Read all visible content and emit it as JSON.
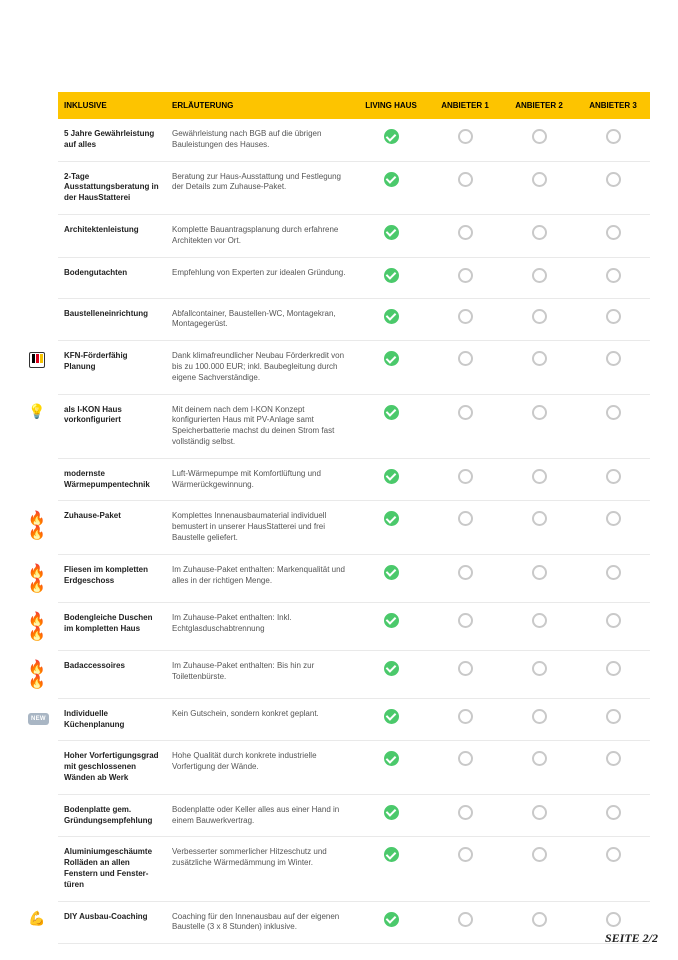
{
  "header": {
    "inklusive": "INKLUSIVE",
    "erlaeuterung": "ERLÄUTERUNG",
    "living": "LIVING HAUS",
    "a1": "ANBIETER 1",
    "a2": "ANBIETER 2",
    "a3": "ANBIETER 3"
  },
  "colors": {
    "header_bg": "#fdc400",
    "check_bg": "#4bc96b",
    "ring_border": "#c9c9c9",
    "row_border": "#e9e9e9"
  },
  "rows": [
    {
      "icon": "",
      "title": "5 Jahre Gewährleistung auf alles",
      "desc": "Gewährleistung nach BGB auf die übrigen Bauleistungen des Hauses."
    },
    {
      "icon": "",
      "title": "2-Tage Ausstattungsberatung in der HausStatterei",
      "desc": "Beratung zur Haus-Ausstattung und Festlegung der Details zum Zuhause-Paket."
    },
    {
      "icon": "",
      "title": "Architektenleistung",
      "desc": "Komplette Bauantragsplanung durch erfahrene Architekten vor Ort."
    },
    {
      "icon": "",
      "title": "Bodengutachten",
      "desc": "Empfehlung von Experten zur idealen Gründung."
    },
    {
      "icon": "",
      "title": "Baustelleneinrichtung",
      "desc": "Abfallcontainer, Baustellen-WC, Montagekran, Montagegerüst."
    },
    {
      "icon": "kfn",
      "title": "KFN-Förderfähig Planung",
      "desc": "Dank klimafreundlicher Neubau Förderkredit von bis zu 100.000 EUR; inkl. Baubegleitung durch eigene Sachverständige."
    },
    {
      "icon": "💡",
      "title": "als I-KON Haus vorkonfiguriert",
      "desc": "Mit deinem nach dem I-KON Konzept konfigurierten Haus mit PV-Anlage samt Speicherbatterie machst du deinen Strom fast vollständig selbst."
    },
    {
      "icon": "",
      "title": "modernste Wärmepumpentechnik",
      "desc": "Luft-Wärmepumpe mit Komfortlüftung und Wärmerückgewinnung."
    },
    {
      "icon": "🔥🔥",
      "title": "Zuhause-Paket",
      "desc": "Komplettes Innenausbaumaterial individuell bemustert in unserer HausStatterei und frei Baustelle geliefert."
    },
    {
      "icon": "🔥🔥",
      "title": "Fliesen im kompletten Erdgeschoss",
      "desc": "Im Zuhause-Paket enthalten: Markenqualität und alles in der richtigen Menge."
    },
    {
      "icon": "🔥🔥",
      "title": "Bodengleiche Duschen im kompletten Haus",
      "desc": "Im Zuhause-Paket enthalten: Inkl. Echtglasduschabtrennung"
    },
    {
      "icon": "🔥🔥",
      "title": "Badaccessoires",
      "desc": "Im Zuhause-Paket enthalten: Bis hin zur Toilettenbürste."
    },
    {
      "icon": "new",
      "title": "Individuelle Küchenplanung",
      "desc": "Kein Gutschein, sondern konkret geplant."
    },
    {
      "icon": "",
      "title": "Hoher Vorfertigungsgrad mit geschlossenen Wänden ab Werk",
      "desc": "Hohe Qualität durch konkrete industrielle Vorfertigung der Wände."
    },
    {
      "icon": "",
      "title": "Bodenplatte gem. Gründungsempfehlung",
      "desc": "Bodenplatte oder Keller alles aus einer Hand in einem Bauwerkvertrag."
    },
    {
      "icon": "",
      "title": "Aluminiumgeschäumte Rolläden an allen Fenstern und Fenster-türen",
      "desc": "Verbesserter sommerlicher Hitzeschutz und zusätzliche Wärmedämmung im Winter."
    },
    {
      "icon": "💪",
      "title": "DIY Ausbau-Coaching",
      "desc": "Coaching für den Innenausbau auf der eigenen Baustelle (3 x 8 Stunden) inklusive."
    }
  ],
  "badge_new": "NEW",
  "footer": "SEITE 2/2"
}
